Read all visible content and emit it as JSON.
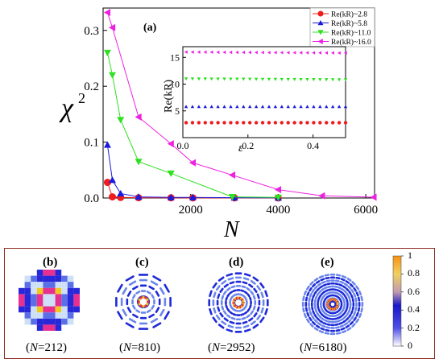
{
  "chart_data": [
    {
      "type": "line",
      "panel_label": "(a)",
      "xlabel": "N",
      "ylabel": "χ",
      "ylabel_sup": "2",
      "xlim": [
        0,
        6200
      ],
      "ylim": [
        0,
        0.34
      ],
      "xticks": [
        "2000",
        "4000",
        "6000"
      ],
      "yticks": [
        "0.0",
        "0.1",
        "0.2",
        "0.3"
      ],
      "legend_placement": "top-right",
      "series": [
        {
          "name": "Re(kR)~2.8",
          "color": "#ee1c1c",
          "marker": "circle",
          "x": [
            100,
            212,
            400,
            810,
            1550,
            2050,
            3000,
            4000
          ],
          "y": [
            0.028,
            0.002,
            0.001,
            0.0005,
            0.0003,
            0.0002,
            0.0002,
            0.0001
          ]
        },
        {
          "name": "Re(kR)~5.8",
          "color": "#1a1adc",
          "marker": "triangle-up",
          "x": [
            100,
            212,
            400,
            810,
            1550,
            2050,
            3000,
            4000
          ],
          "y": [
            0.095,
            0.032,
            0.008,
            0.002,
            0.001,
            0.001,
            0.0005,
            0.0004
          ]
        },
        {
          "name": "Re(kR)~11.0",
          "color": "#2ee020",
          "marker": "triangle-down",
          "x": [
            100,
            212,
            400,
            810,
            1550,
            2952,
            4000
          ],
          "y": [
            0.26,
            0.22,
            0.14,
            0.065,
            0.044,
            0.002,
            0.001
          ]
        },
        {
          "name": "Re(kR)~16.0",
          "color": "#ee22e0",
          "marker": "triangle-left",
          "x": [
            100,
            212,
            810,
            1550,
            2050,
            2952,
            4000,
            5000,
            6180
          ],
          "y": [
            0.332,
            0.305,
            0.145,
            0.097,
            0.063,
            0.041,
            0.015,
            0.004,
            0.0015
          ]
        }
      ]
    },
    {
      "type": "scatter",
      "panel": "inset",
      "xlabel": "ε",
      "ylabel": "Re(kR)",
      "xlim": [
        0,
        0.5
      ],
      "ylim": [
        0,
        17
      ],
      "xticks": [
        "0.0",
        "0.2",
        "0.4"
      ],
      "yticks": [
        "5",
        "10",
        "15"
      ],
      "series": [
        {
          "color": "#ee1c1c",
          "marker": "circle",
          "value": 2.8
        },
        {
          "color": "#1a1adc",
          "marker": "triangle-up",
          "value": 5.8
        },
        {
          "color": "#2ee020",
          "marker": "triangle-down",
          "value": 11.0
        },
        {
          "color": "#ee22e0",
          "marker": "triangle-left",
          "value": 16.0
        }
      ]
    }
  ],
  "panels": [
    {
      "label": "(b)",
      "caption": "(N=212)",
      "caption_pre": "(",
      "caption_var": "N",
      "caption_post": "=212)"
    },
    {
      "label": "(c)",
      "caption": "(N=810)",
      "caption_pre": "(",
      "caption_var": "N",
      "caption_post": "=810)"
    },
    {
      "label": "(d)",
      "caption": "(N=2952)",
      "caption_pre": "(",
      "caption_var": "N",
      "caption_post": "=2952)"
    },
    {
      "label": "(e)",
      "caption": "(N=6180)",
      "caption_pre": "(",
      "caption_var": "N",
      "caption_post": "=6180)"
    }
  ],
  "colorbar": {
    "ticks": [
      "1",
      "0.8",
      "0.6",
      "0.4",
      "0.2",
      "0"
    ],
    "colors": [
      "#ffffff",
      "#3030e0",
      "#d8c2c2",
      "#f0e030",
      "#f8a010"
    ]
  },
  "border_color": "#8b2c22"
}
